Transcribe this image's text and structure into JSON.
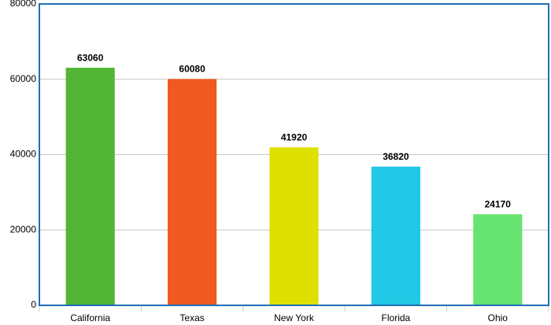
{
  "chart_data": {
    "type": "bar",
    "categories": [
      "California",
      "Texas",
      "New York",
      "Florida",
      "Ohio"
    ],
    "values": [
      63060,
      60080,
      41920,
      36820,
      24170
    ],
    "colors": [
      "#52b535",
      "#ee5a1f",
      "#dde000",
      "#22c8e5",
      "#66e370"
    ],
    "ylim": [
      0,
      80000
    ],
    "yticks": [
      0,
      20000,
      40000,
      60000,
      80000
    ],
    "grid": true
  }
}
